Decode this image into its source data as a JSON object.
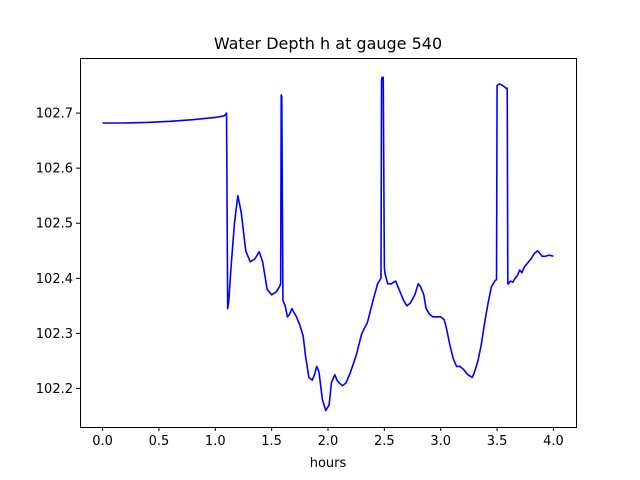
{
  "chart_data": {
    "type": "line",
    "title": "Water Depth h at gauge 540",
    "xlabel": "hours",
    "ylabel": "",
    "xlim": [
      -0.2,
      4.2
    ],
    "ylim": [
      102.13,
      102.8
    ],
    "grid": false,
    "xticks": [
      0.0,
      0.5,
      1.0,
      1.5,
      2.0,
      2.5,
      3.0,
      3.5,
      4.0
    ],
    "xtick_labels": [
      "0.0",
      "0.5",
      "1.0",
      "1.5",
      "2.0",
      "2.5",
      "3.0",
      "3.5",
      "4.0"
    ],
    "yticks": [
      102.2,
      102.3,
      102.4,
      102.5,
      102.6,
      102.7
    ],
    "ytick_labels": [
      "102.2",
      "102.3",
      "102.4",
      "102.5",
      "102.6",
      "102.7"
    ],
    "series": [
      {
        "color": "#0000ff",
        "x": [
          0.0,
          0.2,
          0.4,
          0.6,
          0.8,
          1.0,
          1.08,
          1.1,
          1.11,
          1.12,
          1.14,
          1.17,
          1.2,
          1.23,
          1.27,
          1.31,
          1.35,
          1.39,
          1.42,
          1.46,
          1.5,
          1.54,
          1.57,
          1.58,
          1.585,
          1.59,
          1.6,
          1.62,
          1.64,
          1.66,
          1.68,
          1.72,
          1.75,
          1.78,
          1.8,
          1.83,
          1.86,
          1.88,
          1.9,
          1.92,
          1.95,
          1.98,
          2.01,
          2.03,
          2.06,
          2.08,
          2.1,
          2.13,
          2.16,
          2.2,
          2.25,
          2.3,
          2.35,
          2.4,
          2.44,
          2.47,
          2.475,
          2.48,
          2.49,
          2.5,
          2.505,
          2.51,
          2.53,
          2.56,
          2.6,
          2.63,
          2.67,
          2.7,
          2.73,
          2.77,
          2.8,
          2.82,
          2.85,
          2.87,
          2.9,
          2.93,
          2.96,
          3.0,
          3.03,
          3.05,
          3.08,
          3.11,
          3.14,
          3.17,
          3.2,
          3.24,
          3.28,
          3.3,
          3.33,
          3.36,
          3.39,
          3.42,
          3.45,
          3.48,
          3.495,
          3.5,
          3.52,
          3.55,
          3.58,
          3.59,
          3.595,
          3.6,
          3.62,
          3.64,
          3.66,
          3.68,
          3.7,
          3.72,
          3.74,
          3.76,
          3.78,
          3.8,
          3.83,
          3.86,
          3.88,
          3.9,
          3.93,
          3.96,
          4.0
        ],
        "y": [
          102.682,
          102.682,
          102.683,
          102.685,
          102.688,
          102.692,
          102.695,
          102.7,
          102.345,
          102.36,
          102.42,
          102.5,
          102.55,
          102.52,
          102.45,
          102.43,
          102.435,
          102.448,
          102.43,
          102.38,
          102.37,
          102.375,
          102.385,
          102.39,
          102.733,
          102.73,
          102.36,
          102.35,
          102.33,
          102.335,
          102.345,
          102.33,
          102.315,
          102.295,
          102.26,
          102.22,
          102.215,
          102.225,
          102.24,
          102.23,
          102.18,
          102.16,
          102.17,
          102.21,
          102.225,
          102.215,
          102.21,
          102.205,
          102.21,
          102.23,
          102.26,
          102.3,
          102.32,
          102.36,
          102.39,
          102.4,
          102.76,
          102.765,
          102.765,
          102.42,
          102.41,
          102.405,
          102.39,
          102.39,
          102.395,
          102.38,
          102.36,
          102.35,
          102.355,
          102.37,
          102.39,
          102.385,
          102.37,
          102.345,
          102.335,
          102.33,
          102.33,
          102.33,
          102.325,
          102.31,
          102.28,
          102.255,
          102.24,
          102.24,
          102.235,
          102.225,
          102.22,
          102.23,
          102.25,
          102.28,
          102.32,
          102.355,
          102.385,
          102.395,
          102.398,
          102.75,
          102.753,
          102.75,
          102.745,
          102.745,
          102.39,
          102.39,
          102.395,
          102.393,
          102.4,
          102.405,
          102.415,
          102.41,
          102.42,
          102.425,
          102.43,
          102.435,
          102.445,
          102.45,
          102.445,
          102.44,
          102.44,
          102.442,
          102.44
        ]
      }
    ]
  }
}
